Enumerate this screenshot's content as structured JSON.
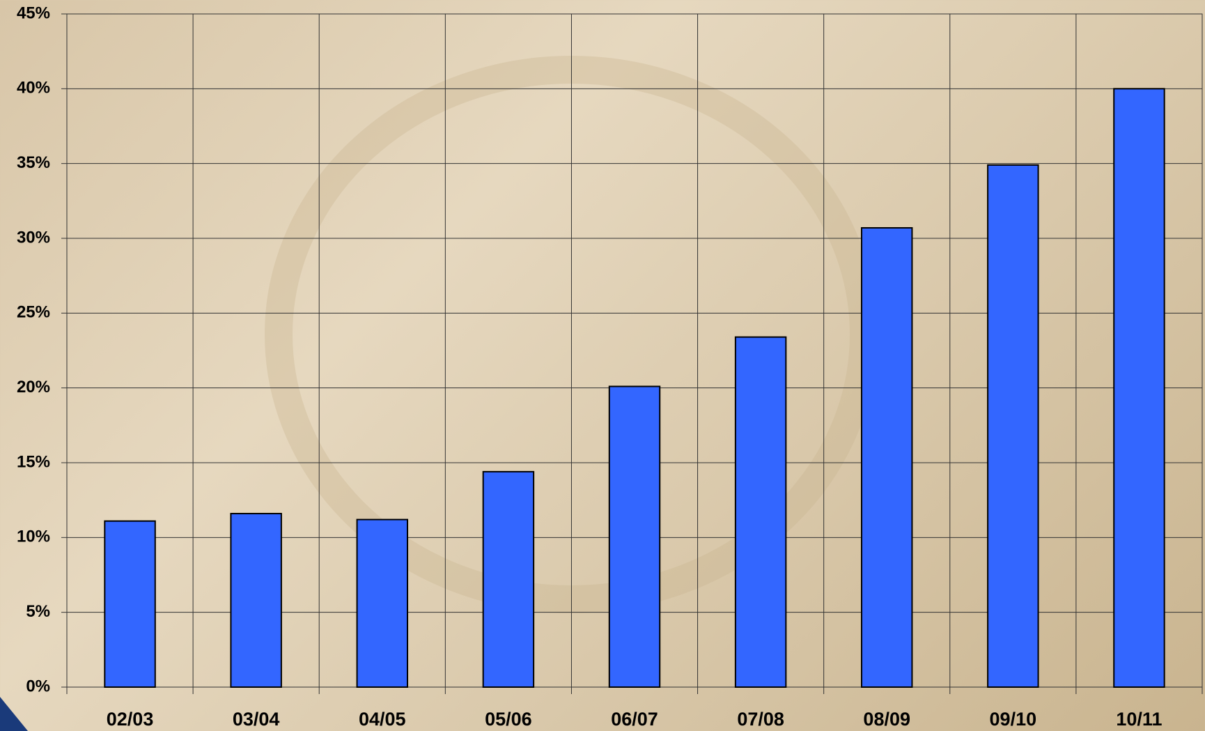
{
  "chart_data": {
    "type": "bar",
    "categories": [
      "02/03",
      "03/04",
      "04/05",
      "05/06",
      "06/07",
      "07/08",
      "08/09",
      "09/10",
      "10/11"
    ],
    "values": [
      11.1,
      11.6,
      11.2,
      14.4,
      20.1,
      23.4,
      30.7,
      34.9,
      40.0
    ],
    "color": "#3366ff",
    "ylim": [
      0,
      45
    ],
    "yticks": [
      {
        "value": 0,
        "label": "0%"
      },
      {
        "value": 5,
        "label": "5%"
      },
      {
        "value": 10,
        "label": "10%"
      },
      {
        "value": 15,
        "label": "15%"
      },
      {
        "value": 20,
        "label": "20%"
      },
      {
        "value": 25,
        "label": "25%"
      },
      {
        "value": 30,
        "label": "30%"
      },
      {
        "value": 35,
        "label": "35%"
      },
      {
        "value": 40,
        "label": "40%"
      },
      {
        "value": 45,
        "label": "45%"
      }
    ],
    "grid": true
  }
}
